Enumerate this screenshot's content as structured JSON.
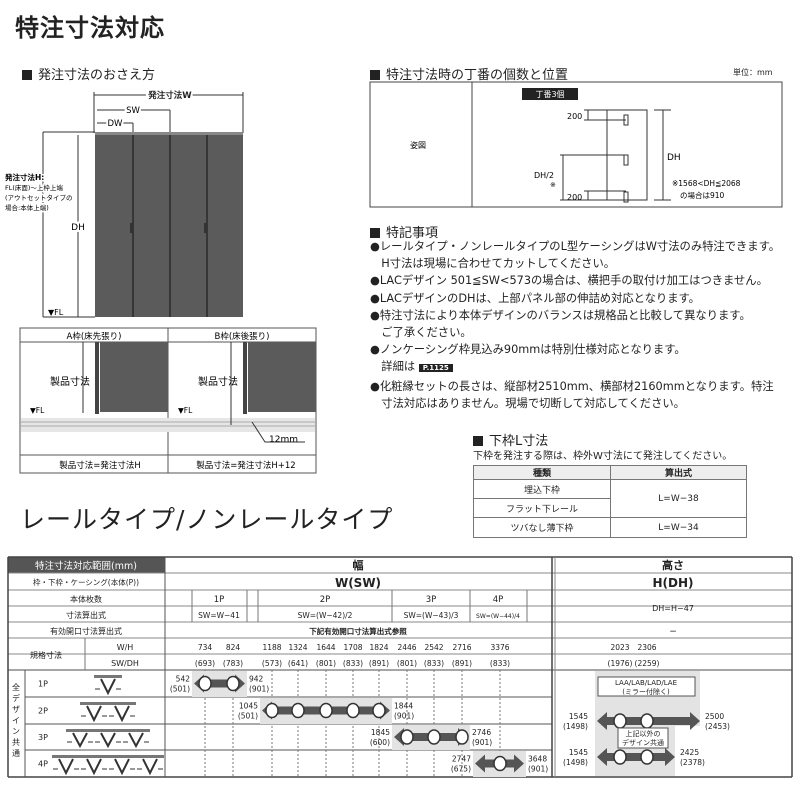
{
  "title": "特注寸法対応",
  "order_dims": {
    "heading": "発注寸法のおさえ方",
    "w_label": "発注寸法W",
    "sw": "SW",
    "dw": "DW",
    "dh": "DH",
    "h_label": "発注寸法H:",
    "h_note1": "FL(床面)～上枠上端",
    "h_note2": "(アウトセットタイプの",
    "h_note3": "場合:本体上端)",
    "fl": "▼FL",
    "frame_a": "A枠(床先張り)",
    "frame_b": "B枠(床後張り)",
    "product_dim": "製品寸法",
    "mm12": "12mm",
    "caption_a": "製品寸法=発注寸法H",
    "caption_b": "製品寸法=発注寸法H+12"
  },
  "hinge": {
    "heading": "特注寸法時の丁番の個数と位置",
    "unit": "単位：mm",
    "row_label": "姿図",
    "badge": "丁番3個",
    "d200": "200",
    "dh2": "DH/2",
    "mark": "※",
    "dh": "DH",
    "note1": "※1568<DH≦2068",
    "note2": "の場合は910"
  },
  "notes": {
    "heading": "特記事項",
    "lines": [
      "●レールタイプ・ノンレールタイプのL型ケーシングはW寸法のみ特注できます。",
      "　H寸法は現場に合わせてカットしてください。",
      "●LACデザイン 501≦SW<573の場合は、横把手の取付け加工はつきません。",
      "●LACデザインのDHは、上部パネル部の伸詰め対応となります。",
      "●特注寸法により本体デザインのバランスは規格品と比較して異なります。",
      "　ご了承ください。",
      "●ノンケーシング枠見込み90mmは特別仕様対応となります。",
      "　詳細は",
      "●化粧縁セットの長さは、縦部材2510mm、横部材2160mmとなります。特注",
      "　寸法対応はありません。現場で切断して対応してください。"
    ],
    "page_ref": "P.1125"
  },
  "lower_frame": {
    "heading": "下枠L寸法",
    "desc": "下枠を発注する際は、枠外W寸法にて発注してください。",
    "col1": "種類",
    "col2": "算出式",
    "rows": [
      "埋込下枠",
      "フラット下レール",
      "ツバなし薄下枠"
    ],
    "f1": "L=W−38",
    "f2": "L=W−34"
  },
  "subtitle": "レールタイプ/ノンレールタイプ",
  "range_table": {
    "header": "特注寸法対応範囲(mm)",
    "width": "幅",
    "height": "高さ",
    "frame_row": "枠・下枠・ケーシング(本体(P))",
    "w_sw": "W(SW)",
    "h_dh": "H(DH)",
    "panels_label": "本体枚数",
    "panels": [
      "1P",
      "2P",
      "3P",
      "4P"
    ],
    "formula_label": "寸法算出式",
    "formulas": [
      "SW=W−41",
      "SW=(W−42)/2",
      "SW=(W−43)/3",
      "SW=(W−44)/4"
    ],
    "h_formula": "DH=H−47",
    "opening_label": "有効開口寸法算出式",
    "opening_value": "下記有効開口寸法算出式参照",
    "opening_h": "−",
    "std_label": "規格寸法",
    "wh": "W/H",
    "swdh": "SW/DH",
    "std_w": [
      "734",
      "824",
      "1188",
      "1324",
      "1644",
      "1708",
      "1824",
      "2446",
      "2542",
      "2716",
      "3376"
    ],
    "std_sw": [
      "(693)",
      "(783)",
      "(573)",
      "(641)",
      "(801)",
      "(833)",
      "(891)",
      "(801)",
      "(833)",
      "(891)",
      "(833)"
    ],
    "std_h": [
      "2023",
      "2306"
    ],
    "std_dh": [
      "(1976)",
      "(2259)"
    ],
    "common": "全デザイン共通",
    "rows": [
      {
        "p": "1P",
        "min": "542",
        "min2": "(501)",
        "max": "942",
        "max2": "(901)"
      },
      {
        "p": "2P",
        "min": "1045",
        "min2": "(501)",
        "max": "1844",
        "max2": "(901)"
      },
      {
        "p": "3P",
        "min": "1845",
        "min2": "(600)",
        "max": "2746",
        "max2": "(901)"
      },
      {
        "p": "4P",
        "min": "2747",
        "min2": "(675)",
        "max": "3648",
        "max2": "(901)"
      }
    ],
    "h_rows": [
      {
        "box": "LAA/LAB/LAD/LAE",
        "box2": "(ミラー付除く)",
        "min": "1545",
        "min2": "(1498)",
        "max": "2500",
        "max2": "(2453)"
      },
      {
        "box": "上記以外の",
        "box2": "デザイン共通",
        "min": "1545",
        "min2": "(1498)",
        "max": "2425",
        "max2": "(2378)"
      }
    ]
  }
}
